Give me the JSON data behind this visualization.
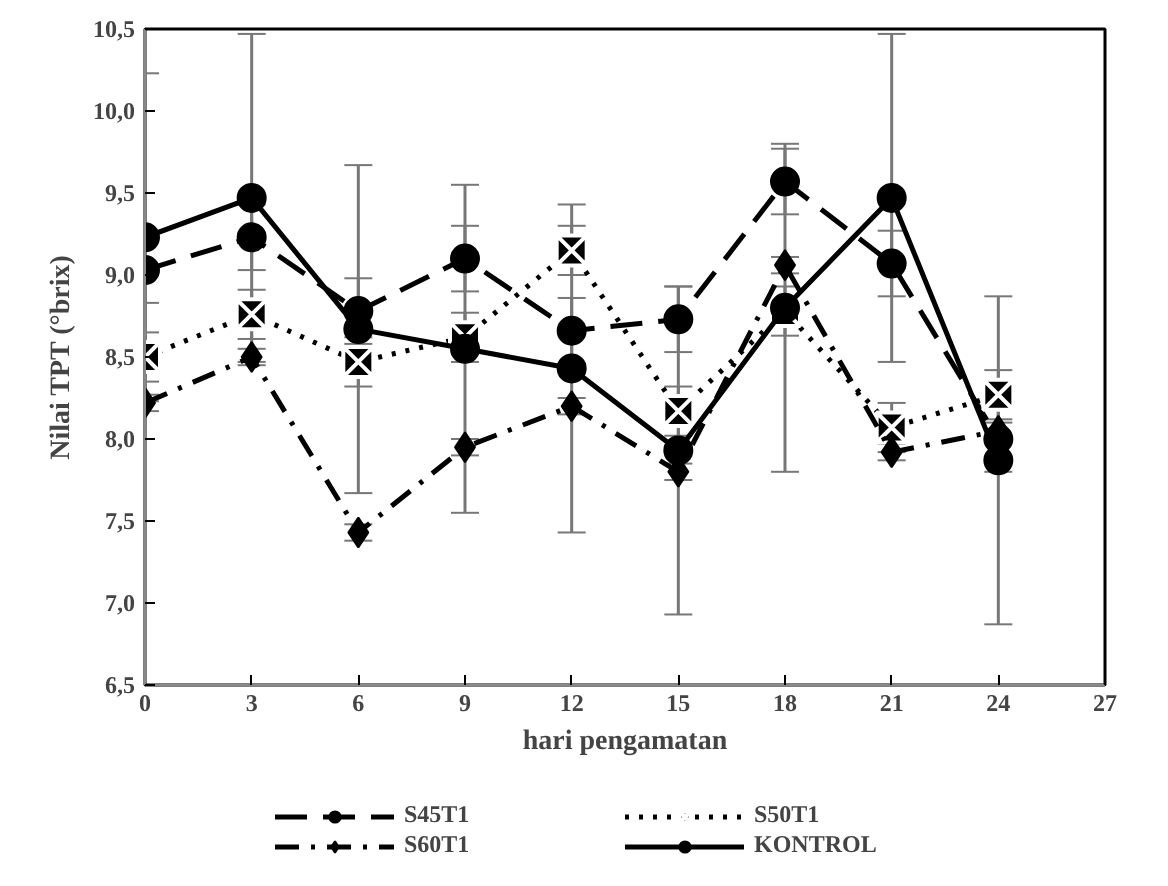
{
  "chart_data": {
    "type": "line",
    "xlabel": "hari pengamatan",
    "ylabel": "Nilai TPT (°brix)",
    "x": [
      0,
      3,
      6,
      9,
      12,
      15,
      18,
      21,
      24
    ],
    "xlim": [
      0,
      27
    ],
    "xticks": [
      0,
      3,
      6,
      9,
      12,
      15,
      18,
      21,
      24,
      27
    ],
    "ylim": [
      6.5,
      10.5
    ],
    "yticks": [
      {
        "value": 6.5,
        "label": "6,5"
      },
      {
        "value": 7.0,
        "label": "7,0"
      },
      {
        "value": 7.5,
        "label": "7,5"
      },
      {
        "value": 8.0,
        "label": "8,0"
      },
      {
        "value": 8.5,
        "label": "8,5"
      },
      {
        "value": 9.0,
        "label": "9,0"
      },
      {
        "value": 9.5,
        "label": "9,5"
      },
      {
        "value": 10.0,
        "label": "10,0"
      },
      {
        "value": 10.5,
        "label": "10,5"
      }
    ],
    "grid": false,
    "legend": "bottom",
    "series": [
      {
        "name": "S45T1",
        "color": "#000000",
        "marker": "circle",
        "line_style": "dashed",
        "values": [
          9.03,
          9.23,
          8.78,
          9.1,
          8.66,
          8.73,
          9.57,
          9.07,
          8.0
        ],
        "errors": [
          0.2,
          0.2,
          0.2,
          0.2,
          0.2,
          0.2,
          0.2,
          0.2,
          0.2
        ]
      },
      {
        "name": "S50T1",
        "color": "#000000",
        "marker": "cross",
        "line_style": "dotted",
        "values": [
          8.5,
          8.76,
          8.47,
          8.62,
          9.15,
          8.17,
          8.78,
          8.07,
          8.27
        ],
        "errors": [
          0.15,
          0.15,
          0.15,
          0.15,
          0.15,
          0.15,
          0.15,
          0.15,
          0.15
        ]
      },
      {
        "name": "S60T1",
        "color": "#000000",
        "marker": "diamond",
        "line_style": "dashdot",
        "values": [
          8.22,
          8.5,
          7.43,
          7.95,
          8.2,
          7.8,
          9.06,
          7.92,
          8.05
        ],
        "errors": [
          0.05,
          0.05,
          0.05,
          0.05,
          0.05,
          0.05,
          0.05,
          0.05,
          0.05
        ]
      },
      {
        "name": "KONTROL",
        "color": "#000000",
        "marker": "circle",
        "line_style": "solid",
        "values": [
          9.23,
          9.47,
          8.67,
          8.55,
          8.43,
          7.93,
          8.8,
          9.47,
          7.87
        ],
        "errors": [
          1.0,
          1.0,
          1.0,
          1.0,
          1.0,
          1.0,
          1.0,
          1.0,
          1.0
        ]
      }
    ]
  }
}
